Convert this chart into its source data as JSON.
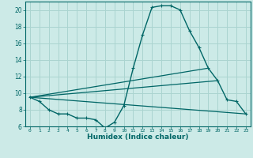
{
  "xlabel": "Humidex (Indice chaleur)",
  "background_color": "#cceae7",
  "grid_color": "#aad4d0",
  "line_color": "#006666",
  "x_values": [
    0,
    1,
    2,
    3,
    4,
    5,
    6,
    7,
    8,
    9,
    10,
    11,
    12,
    13,
    14,
    15,
    16,
    17,
    18,
    19,
    20,
    21,
    22,
    23
  ],
  "series1": [
    9.5,
    9.0,
    8.0,
    7.5,
    7.5,
    7.0,
    7.0,
    6.8,
    5.8,
    6.5,
    8.5,
    13.0,
    17.0,
    20.3,
    20.5,
    20.5,
    20.0,
    17.5,
    15.5,
    13.0,
    11.5,
    9.2,
    9.0,
    7.5
  ],
  "series2_x": [
    0,
    23
  ],
  "series2_y": [
    9.5,
    7.5
  ],
  "series3_x": [
    0,
    19
  ],
  "series3_y": [
    9.5,
    13.0
  ],
  "series4_x": [
    0,
    20
  ],
  "series4_y": [
    9.5,
    11.5
  ],
  "ylim": [
    6,
    21
  ],
  "xlim": [
    -0.5,
    23.5
  ],
  "yticks": [
    6,
    8,
    10,
    12,
    14,
    16,
    18,
    20
  ],
  "xticks": [
    0,
    1,
    2,
    3,
    4,
    5,
    6,
    7,
    8,
    9,
    10,
    11,
    12,
    13,
    14,
    15,
    16,
    17,
    18,
    19,
    20,
    21,
    22,
    23
  ],
  "xtick_labels": [
    "0",
    "1",
    "2",
    "3",
    "4",
    "5",
    "6",
    "7",
    "8",
    "9",
    "10",
    "11",
    "12",
    "13",
    "14",
    "15",
    "16",
    "17",
    "18",
    "19",
    "20",
    "21",
    "22",
    "23"
  ]
}
